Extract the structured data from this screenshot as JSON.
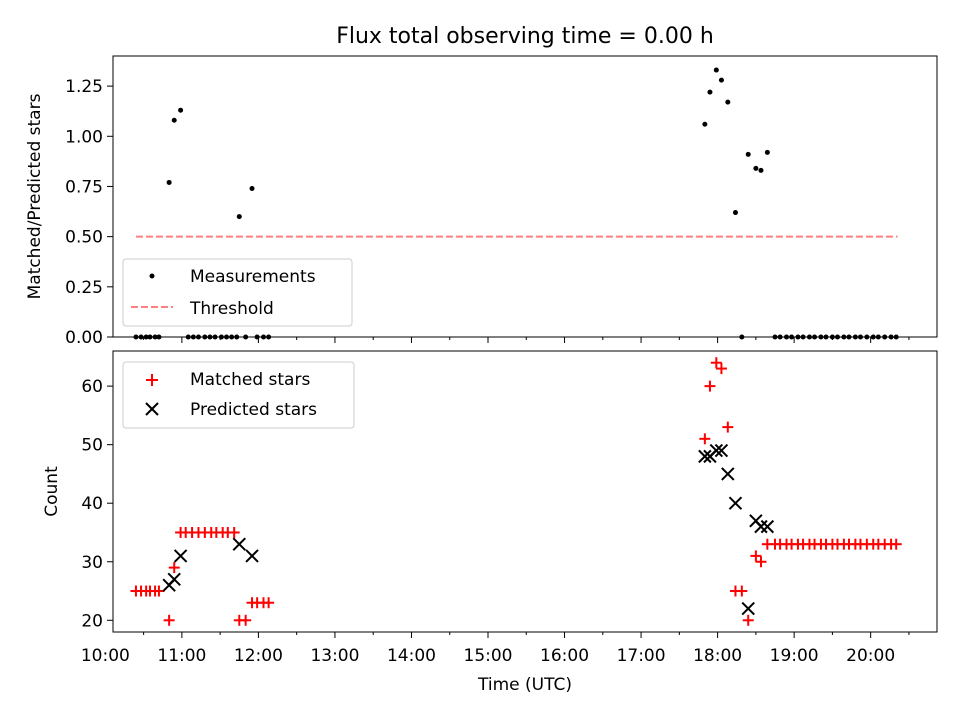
{
  "figure": {
    "title": "Flux total observing time = 0.00 h",
    "xlabel": "Time (UTC)"
  },
  "chart_data": [
    {
      "type": "scatter",
      "ylabel": "Matched/Predicted stars",
      "xlim": [
        "10:06",
        "20:52"
      ],
      "ylim": [
        0,
        1.4
      ],
      "yticks": [
        0.0,
        0.25,
        0.5,
        0.75,
        1.0,
        1.25
      ],
      "ytick_labels": [
        "0.00",
        "0.25",
        "0.50",
        "0.75",
        "1.00",
        "1.25"
      ],
      "grid": false,
      "legend": {
        "placement": "lower-left",
        "entries": [
          "Measurements",
          "Threshold"
        ]
      },
      "series": [
        {
          "name": "Measurements",
          "marker": "dot",
          "color": "#000000",
          "points": [
            [
              "10:24",
              0
            ],
            [
              "10:28",
              0
            ],
            [
              "10:32",
              0
            ],
            [
              "10:35",
              0
            ],
            [
              "10:39",
              0
            ],
            [
              "10:42",
              0
            ],
            [
              "10:50",
              0.77
            ],
            [
              "10:54",
              1.08
            ],
            [
              "10:59",
              1.13
            ],
            [
              "11:05",
              0
            ],
            [
              "11:09",
              0
            ],
            [
              "11:13",
              0
            ],
            [
              "11:18",
              0
            ],
            [
              "11:22",
              0
            ],
            [
              "11:26",
              0
            ],
            [
              "11:31",
              0
            ],
            [
              "11:35",
              0
            ],
            [
              "11:39",
              0
            ],
            [
              "11:43",
              0
            ],
            [
              "11:45",
              0.6
            ],
            [
              "11:50",
              0
            ],
            [
              "11:55",
              0.74
            ],
            [
              "11:59",
              0
            ],
            [
              "12:04",
              0
            ],
            [
              "12:08",
              0
            ],
            [
              "17:50",
              1.06
            ],
            [
              "17:54",
              1.22
            ],
            [
              "17:59",
              1.33
            ],
            [
              "18:03",
              1.28
            ],
            [
              "18:08",
              1.17
            ],
            [
              "18:14",
              0.62
            ],
            [
              "18:19",
              0
            ],
            [
              "18:24",
              0.91
            ],
            [
              "18:30",
              0.84
            ],
            [
              "18:34",
              0.83
            ],
            [
              "18:39",
              0.92
            ],
            [
              "18:45",
              0
            ],
            [
              "18:49",
              0
            ],
            [
              "18:54",
              0
            ],
            [
              "18:58",
              0
            ],
            [
              "19:03",
              0
            ],
            [
              "19:07",
              0
            ],
            [
              "19:12",
              0
            ],
            [
              "19:16",
              0
            ],
            [
              "19:21",
              0
            ],
            [
              "19:25",
              0
            ],
            [
              "19:30",
              0
            ],
            [
              "19:34",
              0
            ],
            [
              "19:39",
              0
            ],
            [
              "19:43",
              0
            ],
            [
              "19:48",
              0
            ],
            [
              "19:52",
              0
            ],
            [
              "19:57",
              0
            ],
            [
              "20:02",
              0
            ],
            [
              "20:06",
              0
            ],
            [
              "20:11",
              0
            ],
            [
              "20:16",
              0
            ],
            [
              "20:20",
              0
            ]
          ]
        },
        {
          "name": "Threshold",
          "line": "dashed",
          "color": "#ff7f7f",
          "points": [
            [
              "10:24",
              0.5
            ],
            [
              "20:21",
              0.5
            ]
          ]
        }
      ]
    },
    {
      "type": "scatter",
      "ylabel": "Count",
      "xlim": [
        "10:06",
        "20:52"
      ],
      "ylim": [
        18,
        66
      ],
      "yticks": [
        20,
        30,
        40,
        50,
        60
      ],
      "ytick_labels": [
        "20",
        "30",
        "40",
        "50",
        "60"
      ],
      "grid": false,
      "legend": {
        "placement": "top-left",
        "entries": [
          "Matched stars",
          "Predicted stars"
        ]
      },
      "series": [
        {
          "name": "Matched stars",
          "marker": "plus",
          "color": "#ff0000",
          "points": [
            [
              "10:24",
              25
            ],
            [
              "10:28",
              25
            ],
            [
              "10:32",
              25
            ],
            [
              "10:35",
              25
            ],
            [
              "10:39",
              25
            ],
            [
              "10:42",
              25
            ],
            [
              "10:50",
              20
            ],
            [
              "10:54",
              29
            ],
            [
              "10:59",
              35
            ],
            [
              "11:03",
              35
            ],
            [
              "11:08",
              35
            ],
            [
              "11:13",
              35
            ],
            [
              "11:18",
              35
            ],
            [
              "11:23",
              35
            ],
            [
              "11:27",
              35
            ],
            [
              "11:32",
              35
            ],
            [
              "11:36",
              35
            ],
            [
              "11:41",
              35
            ],
            [
              "11:45",
              20
            ],
            [
              "11:50",
              20
            ],
            [
              "11:55",
              23
            ],
            [
              "11:59",
              23
            ],
            [
              "12:04",
              23
            ],
            [
              "12:08",
              23
            ],
            [
              "17:50",
              51
            ],
            [
              "17:54",
              60
            ],
            [
              "17:59",
              64
            ],
            [
              "18:03",
              63
            ],
            [
              "18:08",
              53
            ],
            [
              "18:14",
              25
            ],
            [
              "18:19",
              25
            ],
            [
              "18:24",
              20
            ],
            [
              "18:30",
              31
            ],
            [
              "18:34",
              30
            ],
            [
              "18:39",
              33
            ],
            [
              "18:45",
              33
            ],
            [
              "18:49",
              33
            ],
            [
              "18:54",
              33
            ],
            [
              "18:58",
              33
            ],
            [
              "19:03",
              33
            ],
            [
              "19:07",
              33
            ],
            [
              "19:12",
              33
            ],
            [
              "19:16",
              33
            ],
            [
              "19:21",
              33
            ],
            [
              "19:25",
              33
            ],
            [
              "19:30",
              33
            ],
            [
              "19:34",
              33
            ],
            [
              "19:39",
              33
            ],
            [
              "19:43",
              33
            ],
            [
              "19:48",
              33
            ],
            [
              "19:52",
              33
            ],
            [
              "19:57",
              33
            ],
            [
              "20:02",
              33
            ],
            [
              "20:06",
              33
            ],
            [
              "20:11",
              33
            ],
            [
              "20:16",
              33
            ],
            [
              "20:20",
              33
            ]
          ]
        },
        {
          "name": "Predicted stars",
          "marker": "x",
          "color": "#000000",
          "points": [
            [
              "10:50",
              26
            ],
            [
              "10:54",
              27
            ],
            [
              "10:59",
              31
            ],
            [
              "11:45",
              33
            ],
            [
              "11:55",
              31
            ],
            [
              "17:50",
              48
            ],
            [
              "17:54",
              48
            ],
            [
              "17:59",
              49
            ],
            [
              "18:03",
              49
            ],
            [
              "18:08",
              45
            ],
            [
              "18:14",
              40
            ],
            [
              "18:24",
              22
            ],
            [
              "18:30",
              37
            ],
            [
              "18:34",
              36
            ],
            [
              "18:39",
              36
            ]
          ]
        }
      ]
    }
  ],
  "x_axis": {
    "ticks": [
      "10:00",
      "11:00",
      "12:00",
      "13:00",
      "14:00",
      "15:00",
      "16:00",
      "17:00",
      "18:00",
      "19:00",
      "20:00"
    ],
    "minor_step_minutes": 30
  }
}
